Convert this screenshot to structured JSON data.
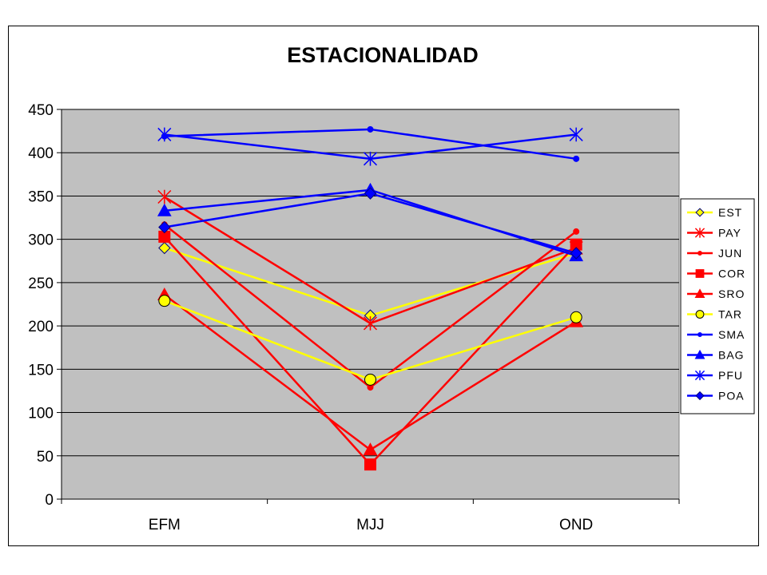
{
  "chart_data": {
    "type": "line",
    "title": "ESTACIONALIDAD",
    "xlabel": "",
    "ylabel": "",
    "categories": [
      "EFM",
      "MJJ",
      "OND"
    ],
    "ylim": [
      0,
      450
    ],
    "yticks": [
      0,
      50,
      100,
      150,
      200,
      250,
      300,
      350,
      400,
      450
    ],
    "grid": true,
    "plot_background": "#c0c0c0",
    "legend_position": "right",
    "series": [
      {
        "name": "EST",
        "values": [
          290,
          212,
          284
        ],
        "color": "#ffff00",
        "marker": "diamond"
      },
      {
        "name": "PAY",
        "values": [
          349,
          203,
          290
        ],
        "color": "#ff0000",
        "marker": "star"
      },
      {
        "name": "JUN",
        "values": [
          317,
          129,
          309
        ],
        "color": "#ff0000",
        "marker": "circle-small"
      },
      {
        "name": "COR",
        "values": [
          303,
          40,
          294
        ],
        "color": "#ff0000",
        "marker": "square"
      },
      {
        "name": "SRO",
        "values": [
          236,
          57,
          205
        ],
        "color": "#ff0000",
        "marker": "triangle"
      },
      {
        "name": "TAR",
        "values": [
          229,
          138,
          210
        ],
        "color": "#ffff00",
        "marker": "circle"
      },
      {
        "name": "SMA",
        "values": [
          419,
          427,
          393
        ],
        "color": "#0000ff",
        "marker": "circle-small"
      },
      {
        "name": "BAG",
        "values": [
          333,
          357,
          281
        ],
        "color": "#0000ff",
        "marker": "triangle"
      },
      {
        "name": "PFU",
        "values": [
          421,
          393,
          421
        ],
        "color": "#0000ff",
        "marker": "star"
      },
      {
        "name": "POA",
        "values": [
          314,
          353,
          284
        ],
        "color": "#0000ff",
        "marker": "diamond"
      }
    ]
  }
}
